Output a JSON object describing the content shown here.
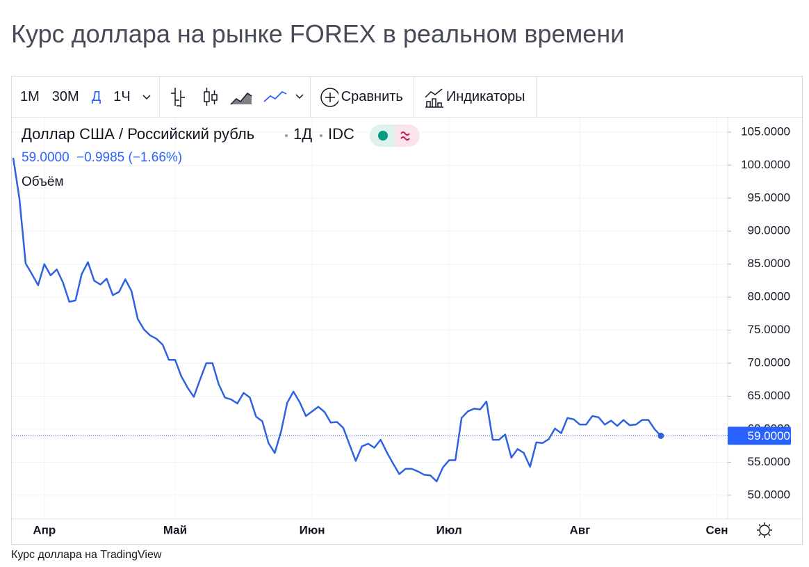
{
  "title": "Курс доллара на рынке FOREX в реальном времени",
  "toolbar": {
    "intervals": [
      "1M",
      "30M",
      "Д",
      "1Ч"
    ],
    "active_interval": "Д",
    "compare": "Сравнить",
    "indicators": "Индикаторы"
  },
  "caption": "Курс доллара на TradingView",
  "chart_data": {
    "type": "line",
    "title": "Доллар США / Российский рубль",
    "interval": "1Д",
    "source": "IDC",
    "price": "59.0000",
    "change": "−0.9985 (−1.66%)",
    "volume_label": "Объём",
    "categories": [
      null,
      null,
      null,
      null,
      null,
      "Апр",
      null,
      null,
      null,
      null,
      null,
      null,
      null,
      null,
      null,
      null,
      null,
      null,
      null,
      null,
      null,
      null,
      null,
      null,
      null,
      null,
      "Май",
      null,
      null,
      null,
      null,
      null,
      null,
      null,
      null,
      null,
      null,
      null,
      null,
      null,
      null,
      null,
      null,
      null,
      null,
      null,
      null,
      null,
      "Июн",
      null,
      null,
      null,
      null,
      null,
      null,
      null,
      null,
      null,
      null,
      null,
      null,
      null,
      null,
      null,
      null,
      null,
      null,
      null,
      null,
      null,
      "Июл",
      null,
      null,
      null,
      null,
      null,
      null,
      null,
      null,
      null,
      null,
      null,
      null,
      null,
      null,
      null,
      null,
      null,
      null,
      null,
      null,
      "Авг",
      null,
      null,
      null,
      null,
      null,
      null,
      null,
      null,
      null,
      null,
      null,
      null,
      null,
      null,
      null,
      null,
      null,
      null,
      null,
      null,
      null,
      "Сен"
    ],
    "series": [
      {
        "name": "Доллар США / Российский рубль",
        "color": "#2f62e0",
        "values": [
          101.1,
          94.9,
          85.1,
          83.5,
          81.8,
          85.0,
          83.3,
          84.2,
          82.2,
          79.3,
          79.5,
          83.5,
          85.3,
          82.5,
          81.9,
          82.8,
          80.3,
          80.8,
          82.7,
          80.9,
          76.7,
          75.1,
          74.2,
          73.7,
          72.8,
          70.5,
          70.5,
          68.0,
          66.3,
          64.9,
          67.5,
          70.0,
          70.0,
          66.8,
          64.8,
          64.5,
          63.9,
          65.5,
          64.8,
          61.9,
          61.2,
          57.9,
          56.4,
          59.6,
          64.0,
          65.7,
          64.1,
          62.0,
          62.7,
          63.4,
          62.6,
          61.0,
          61.1,
          60.2,
          57.7,
          55.2,
          57.4,
          57.8,
          57.2,
          58.4,
          56.5,
          54.8,
          53.2,
          54.0,
          54.0,
          53.6,
          53.1,
          53.0,
          52.1,
          54.2,
          55.3,
          55.3,
          61.7,
          62.7,
          63.1,
          63.0,
          64.2,
          58.4,
          58.4,
          59.2,
          55.7,
          57.0,
          56.4,
          54.3,
          58.0,
          57.9,
          58.5,
          60.1,
          59.4,
          61.7,
          61.5,
          60.7,
          60.7,
          62.0,
          61.8,
          60.7,
          61.3,
          60.5,
          61.4,
          60.6,
          60.7,
          61.4,
          61.4,
          60.0,
          59.0,
          null,
          null,
          null,
          null,
          null,
          null,
          null,
          null,
          null
        ]
      }
    ],
    "ylim": [
      46.4,
      107.2
    ],
    "yticks": [
      {
        "value": 105,
        "label": "105.0000"
      },
      {
        "value": 100,
        "label": "100.0000"
      },
      {
        "value": 95,
        "label": "95.0000"
      },
      {
        "value": 90,
        "label": "90.0000"
      },
      {
        "value": 85,
        "label": "85.0000"
      },
      {
        "value": 80,
        "label": "80.0000"
      },
      {
        "value": 75,
        "label": "75.0000"
      },
      {
        "value": 70,
        "label": "70.0000"
      },
      {
        "value": 65,
        "label": "65.0000"
      },
      {
        "value": 60,
        "label": "60.0000"
      },
      {
        "value": 55,
        "label": "55.0000"
      },
      {
        "value": 50,
        "label": "50.0000"
      }
    ],
    "grid": true,
    "badge_color": "#2962ff"
  }
}
